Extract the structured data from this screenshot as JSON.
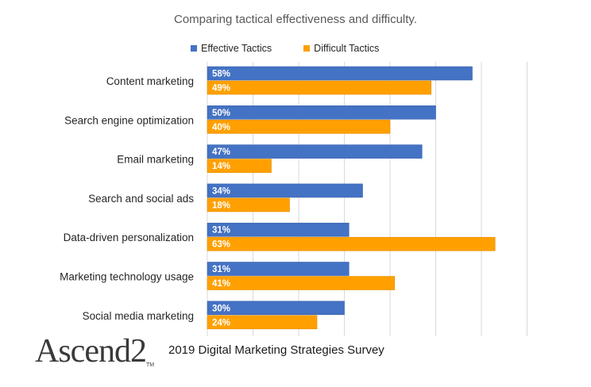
{
  "chart_data": {
    "type": "bar",
    "orientation": "horizontal",
    "title": "Comparing tactical effectiveness and difficulty.",
    "categories": [
      "Content marketing",
      "Search engine optimization",
      "Email marketing",
      "Search and social ads",
      "Data-driven personalization",
      "Marketing technology usage",
      "Social media marketing"
    ],
    "series": [
      {
        "name": "Effective Tactics",
        "color": "#4472C4",
        "values": [
          58,
          50,
          47,
          34,
          31,
          31,
          30
        ]
      },
      {
        "name": "Difficult Tactics",
        "color": "#FFA000",
        "values": [
          49,
          40,
          14,
          18,
          63,
          41,
          24
        ]
      }
    ],
    "value_suffix": "%",
    "xlim": [
      0,
      70
    ],
    "grid": true,
    "legend_position": "top"
  },
  "footer": {
    "source": "2019 Digital Marketing Strategies Survey",
    "logo_text": "Ascend2",
    "logo_mark": "TM"
  }
}
